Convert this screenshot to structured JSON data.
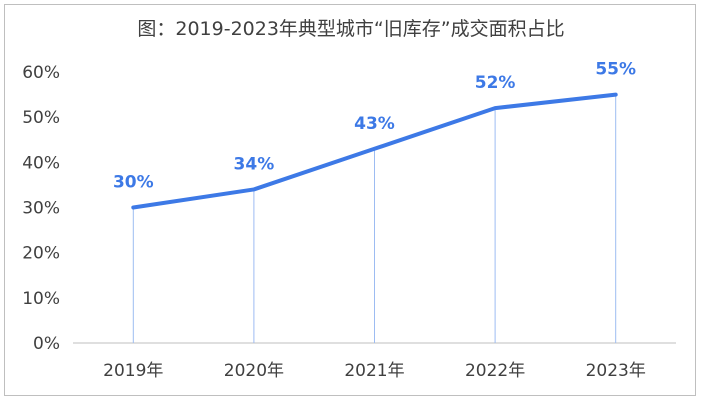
{
  "chart_data": {
    "type": "line",
    "title": "图：2019-2023年典型城市“旧库存”成交面积占比",
    "xlabel": "",
    "ylabel": "",
    "categories": [
      "2019年",
      "2020年",
      "2021年",
      "2022年",
      "2023年"
    ],
    "values": [
      30,
      34,
      43,
      52,
      55
    ],
    "data_labels": [
      "30%",
      "34%",
      "43%",
      "52%",
      "55%"
    ],
    "yticks": [
      "0%",
      "10%",
      "20%",
      "30%",
      "40%",
      "50%",
      "60%"
    ],
    "ylim": [
      0,
      60
    ],
    "grid": false,
    "drop_lines": true,
    "line_color": "#3d79e6",
    "label_color": "#3d79e6",
    "axis_color": "#bfbfbf"
  }
}
